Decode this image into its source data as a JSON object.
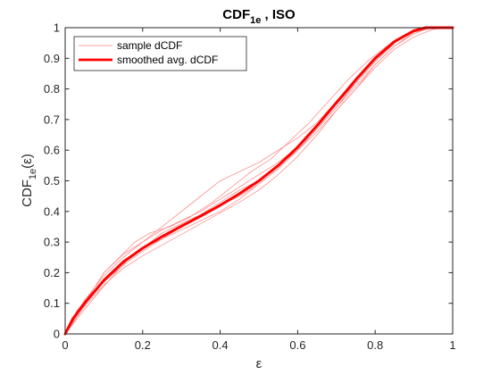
{
  "chart_data": {
    "type": "line",
    "title": {
      "main": "CDF",
      "sub": "1e",
      "rest": " , ISO"
    },
    "xlabel": "ε",
    "ylabel": {
      "main": "CDF",
      "sub": "1e",
      "rest": "(ε)"
    },
    "xlim": [
      0,
      1
    ],
    "ylim": [
      0,
      1
    ],
    "xticks": [
      "0",
      "0.2",
      "0.4",
      "0.6",
      "0.8",
      "1"
    ],
    "yticks": [
      "0",
      "0.1",
      "0.2",
      "0.3",
      "0.4",
      "0.5",
      "0.6",
      "0.7",
      "0.8",
      "0.9",
      "1"
    ],
    "grid": false,
    "legend_position": "top-left",
    "legend": [
      "sample dCDF",
      "smoothed avg. dCDF"
    ],
    "colors": {
      "sample": "#ff8080",
      "smoothed": "#ff0000",
      "axes": "#262626"
    },
    "series": [
      {
        "name": "smoothed avg. dCDF",
        "role": "smoothed",
        "x": [
          0,
          0.02,
          0.05,
          0.1,
          0.15,
          0.2,
          0.25,
          0.3,
          0.35,
          0.4,
          0.45,
          0.5,
          0.55,
          0.6,
          0.65,
          0.7,
          0.75,
          0.8,
          0.85,
          0.9,
          0.93,
          0.95,
          1.0
        ],
        "y": [
          0,
          0.05,
          0.1,
          0.175,
          0.235,
          0.28,
          0.318,
          0.352,
          0.385,
          0.42,
          0.458,
          0.5,
          0.55,
          0.61,
          0.68,
          0.755,
          0.83,
          0.9,
          0.955,
          0.99,
          1.0,
          1.0,
          1.0
        ]
      },
      {
        "name": "sample dCDF",
        "role": "sample",
        "x": [
          0,
          0.03,
          0.07,
          0.1,
          0.14,
          0.18,
          0.22,
          0.27,
          0.32,
          0.38,
          0.43,
          0.48,
          0.53,
          0.58,
          0.63,
          0.68,
          0.73,
          0.78,
          0.83,
          0.88,
          0.92,
          0.95,
          1.0
        ],
        "y": [
          0,
          0.075,
          0.14,
          0.2,
          0.25,
          0.3,
          0.33,
          0.35,
          0.38,
          0.43,
          0.48,
          0.53,
          0.57,
          0.63,
          0.69,
          0.76,
          0.83,
          0.89,
          0.94,
          0.98,
          1.0,
          1.0,
          1.0
        ]
      },
      {
        "name": "sample dCDF",
        "role": "sample",
        "x": [
          0,
          0.04,
          0.08,
          0.12,
          0.16,
          0.2,
          0.25,
          0.3,
          0.35,
          0.4,
          0.45,
          0.5,
          0.55,
          0.6,
          0.65,
          0.7,
          0.75,
          0.8,
          0.85,
          0.9,
          0.93,
          0.96,
          1.0
        ],
        "y": [
          0,
          0.065,
          0.125,
          0.185,
          0.24,
          0.28,
          0.31,
          0.34,
          0.37,
          0.4,
          0.44,
          0.49,
          0.54,
          0.6,
          0.67,
          0.74,
          0.82,
          0.89,
          0.95,
          0.99,
          1.0,
          1.0,
          1.0
        ]
      },
      {
        "name": "sample dCDF",
        "role": "sample",
        "x": [
          0,
          0.05,
          0.1,
          0.15,
          0.2,
          0.25,
          0.3,
          0.35,
          0.4,
          0.45,
          0.5,
          0.55,
          0.6,
          0.65,
          0.7,
          0.75,
          0.8,
          0.85,
          0.9,
          0.94,
          1.0
        ],
        "y": [
          0,
          0.1,
          0.17,
          0.225,
          0.27,
          0.31,
          0.35,
          0.385,
          0.42,
          0.45,
          0.49,
          0.54,
          0.6,
          0.67,
          0.74,
          0.81,
          0.88,
          0.94,
          0.98,
          1.0,
          1.0
        ]
      },
      {
        "name": "sample dCDF",
        "role": "sample",
        "x": [
          0,
          0.05,
          0.1,
          0.15,
          0.2,
          0.25,
          0.3,
          0.35,
          0.4,
          0.45,
          0.5,
          0.55,
          0.6,
          0.65,
          0.7,
          0.75,
          0.8,
          0.85,
          0.9,
          0.93,
          1.0
        ],
        "y": [
          0,
          0.11,
          0.19,
          0.25,
          0.3,
          0.34,
          0.37,
          0.4,
          0.44,
          0.48,
          0.52,
          0.56,
          0.61,
          0.68,
          0.75,
          0.82,
          0.89,
          0.95,
          0.99,
          1.0,
          1.0
        ]
      },
      {
        "name": "sample dCDF",
        "role": "sample",
        "x": [
          0,
          0.05,
          0.1,
          0.15,
          0.2,
          0.25,
          0.3,
          0.35,
          0.4,
          0.45,
          0.5,
          0.55,
          0.6,
          0.65,
          0.7,
          0.75,
          0.8,
          0.85,
          0.9,
          0.95,
          1.0
        ],
        "y": [
          0,
          0.09,
          0.16,
          0.215,
          0.255,
          0.29,
          0.325,
          0.36,
          0.395,
          0.43,
          0.47,
          0.52,
          0.58,
          0.65,
          0.73,
          0.8,
          0.87,
          0.93,
          0.97,
          0.995,
          1.0
        ]
      },
      {
        "name": "sample dCDF",
        "role": "sample",
        "x": [
          0,
          0.05,
          0.1,
          0.15,
          0.2,
          0.25,
          0.3,
          0.35,
          0.4,
          0.45,
          0.5,
          0.55,
          0.6,
          0.65,
          0.7,
          0.75,
          0.8,
          0.85,
          0.9,
          0.95,
          1.0
        ],
        "y": [
          0,
          0.1,
          0.18,
          0.24,
          0.28,
          0.33,
          0.36,
          0.39,
          0.43,
          0.47,
          0.5,
          0.55,
          0.6,
          0.66,
          0.73,
          0.8,
          0.88,
          0.94,
          0.985,
          1.0,
          1.0
        ]
      },
      {
        "name": "sample dCDF",
        "role": "sample",
        "x": [
          0,
          0.05,
          0.1,
          0.15,
          0.2,
          0.25,
          0.3,
          0.35,
          0.4,
          0.45,
          0.5,
          0.55,
          0.6,
          0.65,
          0.7,
          0.75,
          0.8,
          0.85,
          0.9,
          0.95,
          1.0
        ],
        "y": [
          0,
          0.1,
          0.2,
          0.26,
          0.3,
          0.35,
          0.4,
          0.45,
          0.5,
          0.53,
          0.56,
          0.6,
          0.64,
          0.69,
          0.76,
          0.82,
          0.89,
          0.95,
          0.99,
          1.0,
          1.0
        ]
      }
    ]
  }
}
